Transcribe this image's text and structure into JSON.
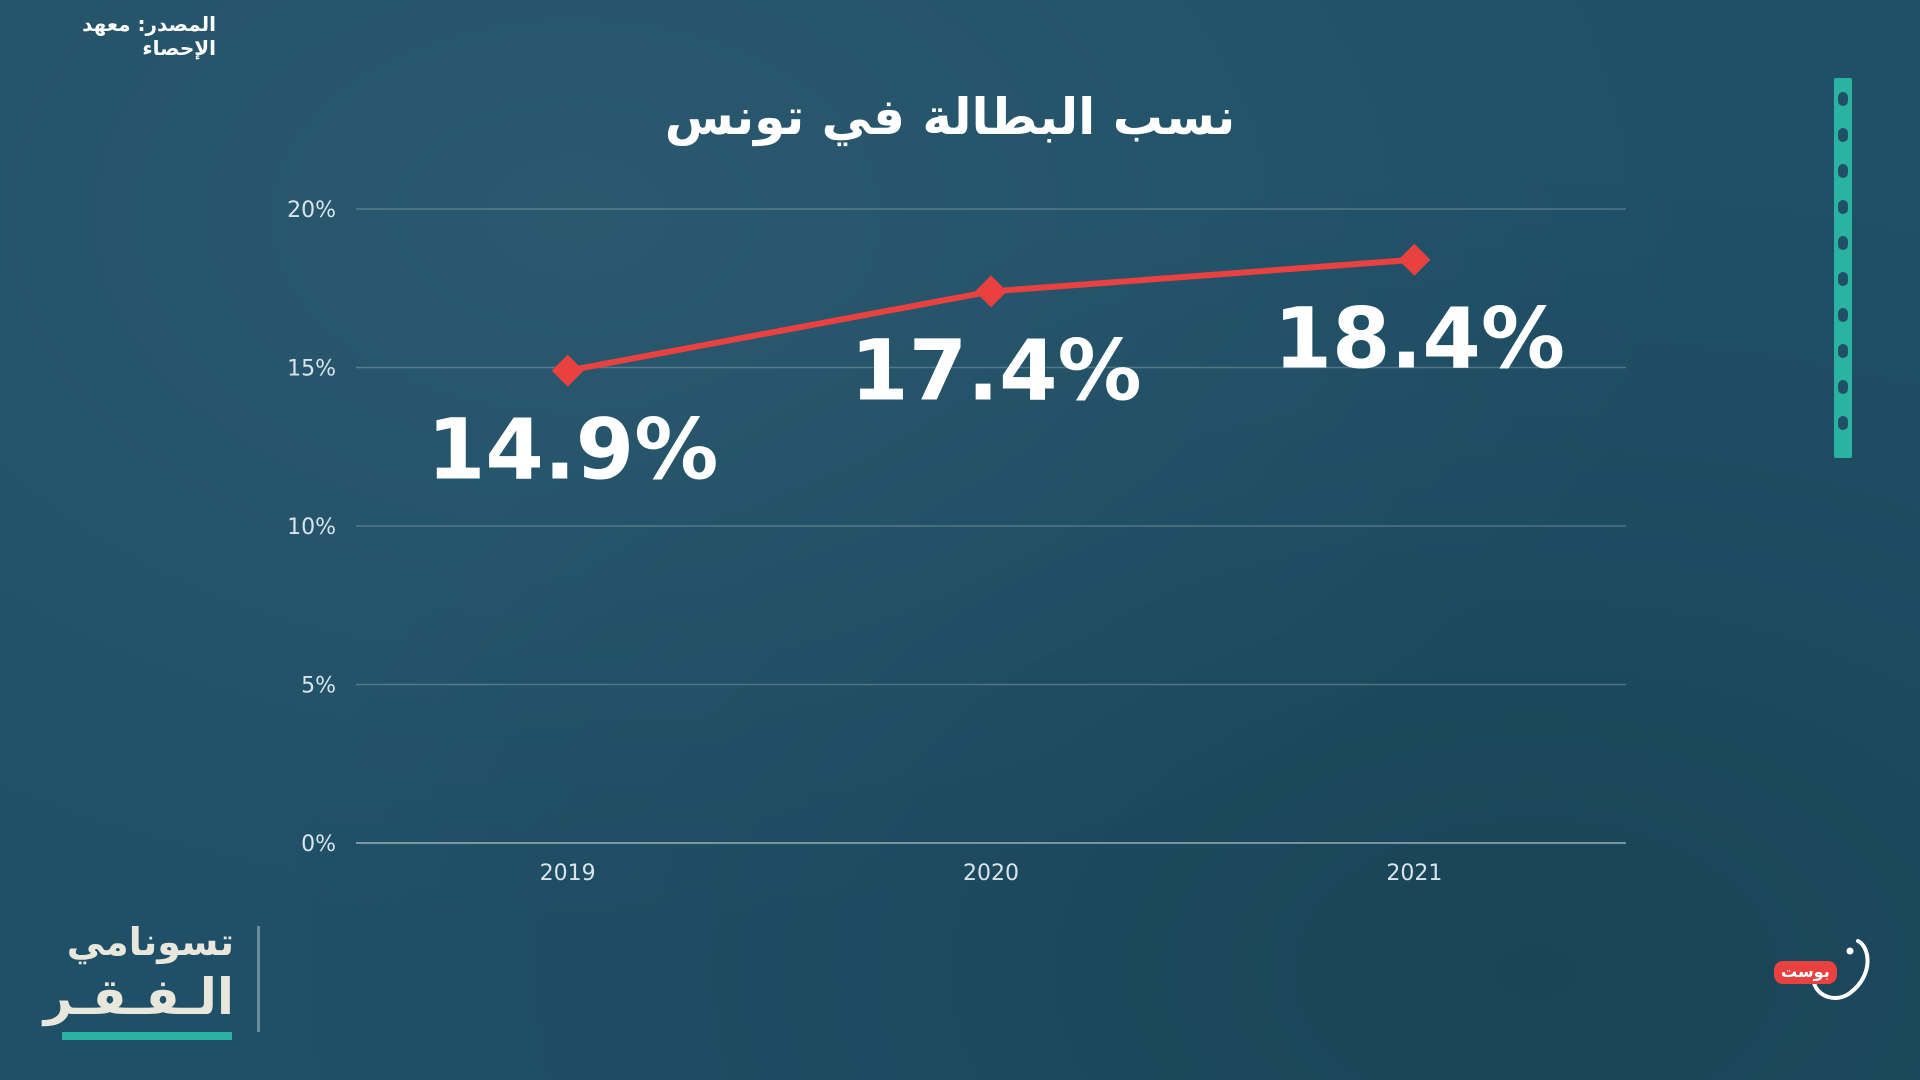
{
  "source_label": "المصدر: معهد الإحصاء",
  "brand_left": {
    "line1": "تسونامي",
    "line2": "الـفـقـر"
  },
  "brand_right": {
    "badge": "بوست"
  },
  "colors": {
    "background": "#1f5067",
    "line": "#e8413f",
    "accent": "#2ab3a0",
    "text": "#ffffff"
  },
  "chart_data": {
    "type": "line",
    "title": "نسب البطالة في تونس",
    "categories": [
      "2019",
      "2020",
      "2021"
    ],
    "series": [
      {
        "values": [
          14.9,
          17.4,
          18.4
        ],
        "labels": [
          "14.9%",
          "17.4%",
          "18.4%"
        ],
        "marker": "diamond",
        "color": "#e8413f"
      }
    ],
    "y_ticks": [
      0,
      5,
      10,
      15,
      20
    ],
    "y_tick_labels": [
      "0%",
      "5%",
      "10%",
      "15%",
      "20%"
    ],
    "ylim": [
      0,
      20
    ],
    "grid": true,
    "xlabel": "",
    "ylabel": ""
  }
}
